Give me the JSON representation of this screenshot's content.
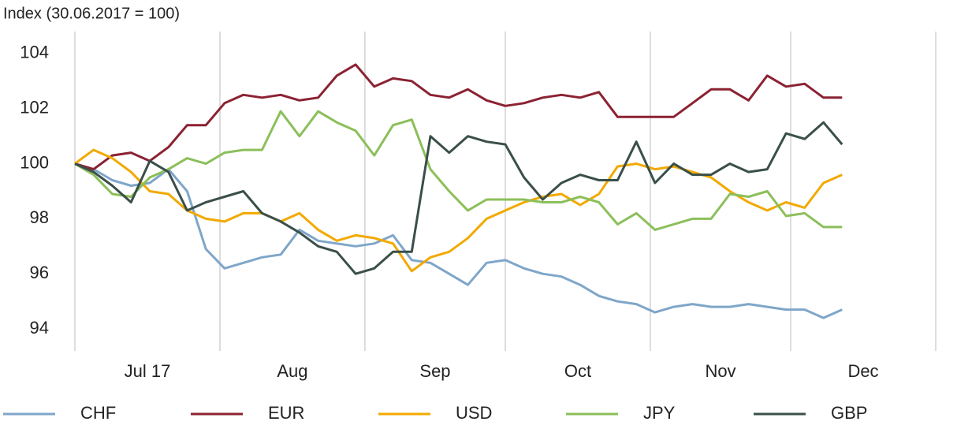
{
  "chart_data": {
    "type": "line",
    "title": "Index (30.06.2017 = 100)",
    "x": [
      0,
      4,
      8,
      12,
      16,
      20,
      24,
      28,
      32,
      36,
      40,
      44,
      48,
      52,
      56,
      60,
      64,
      68,
      72,
      76,
      80,
      84,
      88,
      92,
      96,
      100,
      104,
      108,
      112,
      116,
      120,
      124,
      128,
      132,
      136,
      140,
      144,
      148,
      152,
      156,
      160,
      164
    ],
    "xlim": [
      0,
      184
    ],
    "xticks": [
      {
        "value": 15.5,
        "label": "Jul 17"
      },
      {
        "value": 46.5,
        "label": "Aug"
      },
      {
        "value": 77,
        "label": "Sep"
      },
      {
        "value": 107.5,
        "label": "Oct"
      },
      {
        "value": 138,
        "label": "Nov"
      },
      {
        "value": 168.5,
        "label": "Dec"
      }
    ],
    "xgrid": [
      0,
      31,
      62,
      92,
      123,
      153,
      184
    ],
    "ylim": [
      93.2,
      104.8
    ],
    "yticks": [
      94,
      96,
      98,
      100,
      102,
      104
    ],
    "series": [
      {
        "name": "CHF",
        "color": "#7fa6c9",
        "values": [
          100,
          99.8,
          99.4,
          99.2,
          99.3,
          99.8,
          99,
          96.9,
          96.2,
          96.4,
          96.6,
          96.7,
          97.6,
          97.2,
          97.1,
          97,
          97.1,
          97.4,
          96.5,
          96.4,
          96,
          95.6,
          96.4,
          96.5,
          96.2,
          96,
          95.9,
          95.6,
          95.2,
          95,
          94.9,
          94.6,
          94.8,
          94.9,
          94.8,
          94.8,
          94.9,
          94.8,
          94.7,
          94.7,
          94.4,
          94.7
        ]
      },
      {
        "name": "EUR",
        "color": "#8b2232",
        "values": [
          100,
          99.8,
          100.3,
          100.4,
          100.1,
          100.6,
          101.4,
          101.4,
          102.2,
          102.5,
          102.4,
          102.5,
          102.3,
          102.4,
          103.2,
          103.6,
          102.8,
          103.1,
          103,
          102.5,
          102.4,
          102.7,
          102.3,
          102.1,
          102.2,
          102.4,
          102.5,
          102.4,
          102.6,
          101.7,
          101.7,
          101.7,
          101.7,
          102.2,
          102.7,
          102.7,
          102.3,
          103.2,
          102.8,
          102.9,
          102.4,
          102.4
        ]
      },
      {
        "name": "USD",
        "color": "#f2a900",
        "values": [
          100,
          100.5,
          100.2,
          99.7,
          99,
          98.9,
          98.3,
          98,
          97.9,
          98.2,
          98.2,
          97.9,
          98.2,
          97.6,
          97.2,
          97.4,
          97.3,
          97.1,
          96.1,
          96.6,
          96.8,
          97.3,
          98,
          98.3,
          98.6,
          98.8,
          98.9,
          98.5,
          98.9,
          99.9,
          100,
          99.8,
          99.9,
          99.7,
          99.5,
          99,
          98.6,
          98.3,
          98.6,
          98.4,
          99.3,
          99.6
        ]
      },
      {
        "name": "JPY",
        "color": "#8cbf5a",
        "values": [
          100,
          99.6,
          98.9,
          98.8,
          99.5,
          99.8,
          100.2,
          100,
          100.4,
          100.5,
          100.5,
          101.9,
          101,
          101.9,
          101.5,
          101.2,
          100.3,
          101.4,
          101.6,
          99.8,
          99,
          98.3,
          98.7,
          98.7,
          98.7,
          98.6,
          98.6,
          98.8,
          98.6,
          97.8,
          98.2,
          97.6,
          97.8,
          98,
          98,
          98.9,
          98.8,
          99,
          98.1,
          98.2,
          97.7,
          97.7
        ]
      },
      {
        "name": "GBP",
        "color": "#3a4f4a",
        "values": [
          100,
          99.7,
          99.2,
          98.6,
          100.1,
          99.7,
          98.3,
          98.6,
          98.8,
          99,
          98.2,
          97.9,
          97.5,
          97,
          96.8,
          96,
          96.2,
          96.8,
          96.8,
          101,
          100.4,
          101,
          100.8,
          100.7,
          99.5,
          98.7,
          99.3,
          99.6,
          99.4,
          99.4,
          100.8,
          99.3,
          100,
          99.6,
          99.6,
          100,
          99.7,
          99.8,
          101.1,
          100.9,
          101.5,
          100.7
        ]
      }
    ]
  }
}
